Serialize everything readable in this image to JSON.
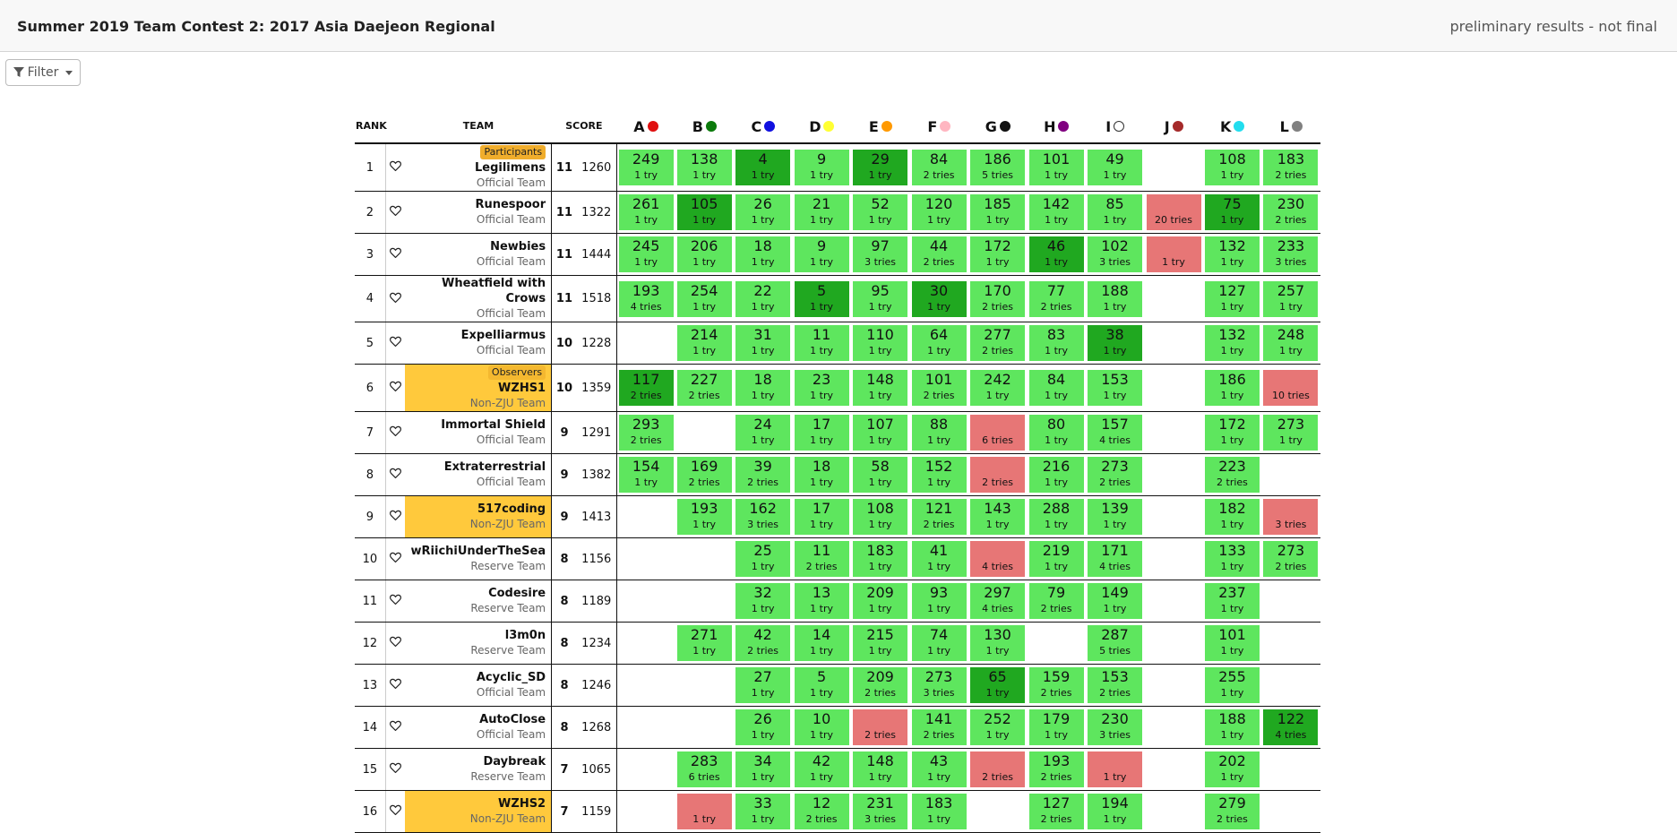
{
  "header": {
    "title": "Summer 2019 Team Contest 2: 2017 Asia Daejeon Regional",
    "status": "preliminary results - not final"
  },
  "filter": {
    "label": "Filter"
  },
  "columns": {
    "rank": "RANK",
    "team": "TEAM",
    "score": "SCORE"
  },
  "problems": [
    {
      "letter": "A",
      "color": "#e01010"
    },
    {
      "letter": "B",
      "color": "#0b7a0b"
    },
    {
      "letter": "C",
      "color": "#1010e0"
    },
    {
      "letter": "D",
      "color": "#ffff33"
    },
    {
      "letter": "E",
      "color": "#ff9900"
    },
    {
      "letter": "F",
      "color": "#ffb6c1"
    },
    {
      "letter": "G",
      "color": "#111111"
    },
    {
      "letter": "H",
      "color": "#800080"
    },
    {
      "letter": "I",
      "color": "#ffffff"
    },
    {
      "letter": "J",
      "color": "#a52a2a"
    },
    {
      "letter": "K",
      "color": "#22ddee"
    },
    {
      "letter": "L",
      "color": "#808080"
    }
  ],
  "rows": [
    {
      "rank": "1",
      "badge": "Participants",
      "name": "Legilimens",
      "type": "Official Team",
      "solved": "11",
      "penalty": "1260",
      "hl": false,
      "cells": [
        [
          "ac",
          "249",
          "1 try"
        ],
        [
          "ac",
          "138",
          "1 try"
        ],
        [
          "fb",
          "4",
          "1 try"
        ],
        [
          "ac",
          "9",
          "1 try"
        ],
        [
          "fb",
          "29",
          "1 try"
        ],
        [
          "ac",
          "84",
          "2 tries"
        ],
        [
          "ac",
          "186",
          "5 tries"
        ],
        [
          "ac",
          "101",
          "1 try"
        ],
        [
          "ac",
          "49",
          "1 try"
        ],
        [
          "empty",
          "",
          ""
        ],
        [
          "ac",
          "108",
          "1 try"
        ],
        [
          "ac",
          "183",
          "2 tries"
        ]
      ]
    },
    {
      "rank": "2",
      "badge": "",
      "name": "Runespoor",
      "type": "Official Team",
      "solved": "11",
      "penalty": "1322",
      "hl": false,
      "cells": [
        [
          "ac",
          "261",
          "1 try"
        ],
        [
          "fb",
          "105",
          "1 try"
        ],
        [
          "ac",
          "26",
          "1 try"
        ],
        [
          "ac",
          "21",
          "1 try"
        ],
        [
          "ac",
          "52",
          "1 try"
        ],
        [
          "ac",
          "120",
          "1 try"
        ],
        [
          "ac",
          "185",
          "1 try"
        ],
        [
          "ac",
          "142",
          "1 try"
        ],
        [
          "ac",
          "85",
          "1 try"
        ],
        [
          "wa",
          "",
          "20 tries"
        ],
        [
          "fb",
          "75",
          "1 try"
        ],
        [
          "ac",
          "230",
          "2 tries"
        ]
      ]
    },
    {
      "rank": "3",
      "badge": "",
      "name": "Newbies",
      "type": "Official Team",
      "solved": "11",
      "penalty": "1444",
      "hl": false,
      "cells": [
        [
          "ac",
          "245",
          "1 try"
        ],
        [
          "ac",
          "206",
          "1 try"
        ],
        [
          "ac",
          "18",
          "1 try"
        ],
        [
          "ac",
          "9",
          "1 try"
        ],
        [
          "ac",
          "97",
          "3 tries"
        ],
        [
          "ac",
          "44",
          "2 tries"
        ],
        [
          "ac",
          "172",
          "1 try"
        ],
        [
          "fb",
          "46",
          "1 try"
        ],
        [
          "ac",
          "102",
          "3 tries"
        ],
        [
          "wa",
          "",
          "1 try"
        ],
        [
          "ac",
          "132",
          "1 try"
        ],
        [
          "ac",
          "233",
          "3 tries"
        ]
      ]
    },
    {
      "rank": "4",
      "badge": "",
      "name": "Wheatfield with Crows",
      "type": "Official Team",
      "solved": "11",
      "penalty": "1518",
      "hl": false,
      "cells": [
        [
          "ac",
          "193",
          "4 tries"
        ],
        [
          "ac",
          "254",
          "1 try"
        ],
        [
          "ac",
          "22",
          "1 try"
        ],
        [
          "fb",
          "5",
          "1 try"
        ],
        [
          "ac",
          "95",
          "1 try"
        ],
        [
          "fb",
          "30",
          "1 try"
        ],
        [
          "ac",
          "170",
          "2 tries"
        ],
        [
          "ac",
          "77",
          "2 tries"
        ],
        [
          "ac",
          "188",
          "1 try"
        ],
        [
          "empty",
          "",
          ""
        ],
        [
          "ac",
          "127",
          "1 try"
        ],
        [
          "ac",
          "257",
          "1 try"
        ]
      ]
    },
    {
      "rank": "5",
      "badge": "",
      "name": "Expelliarmus",
      "type": "Official Team",
      "solved": "10",
      "penalty": "1228",
      "hl": false,
      "cells": [
        [
          "empty",
          "",
          ""
        ],
        [
          "ac",
          "214",
          "1 try"
        ],
        [
          "ac",
          "31",
          "1 try"
        ],
        [
          "ac",
          "11",
          "1 try"
        ],
        [
          "ac",
          "110",
          "1 try"
        ],
        [
          "ac",
          "64",
          "1 try"
        ],
        [
          "ac",
          "277",
          "2 tries"
        ],
        [
          "ac",
          "83",
          "1 try"
        ],
        [
          "fb",
          "38",
          "1 try"
        ],
        [
          "empty",
          "",
          ""
        ],
        [
          "ac",
          "132",
          "1 try"
        ],
        [
          "ac",
          "248",
          "1 try"
        ]
      ]
    },
    {
      "rank": "6",
      "badge": "Observers",
      "name": "WZHS1",
      "type": "Non-ZJU Team",
      "solved": "10",
      "penalty": "1359",
      "hl": true,
      "cells": [
        [
          "fb",
          "117",
          "2 tries"
        ],
        [
          "ac",
          "227",
          "2 tries"
        ],
        [
          "ac",
          "18",
          "1 try"
        ],
        [
          "ac",
          "23",
          "1 try"
        ],
        [
          "ac",
          "148",
          "1 try"
        ],
        [
          "ac",
          "101",
          "2 tries"
        ],
        [
          "ac",
          "242",
          "1 try"
        ],
        [
          "ac",
          "84",
          "1 try"
        ],
        [
          "ac",
          "153",
          "1 try"
        ],
        [
          "empty",
          "",
          ""
        ],
        [
          "ac",
          "186",
          "1 try"
        ],
        [
          "wa",
          "",
          "10 tries"
        ]
      ]
    },
    {
      "rank": "7",
      "badge": "",
      "name": "Immortal Shield",
      "type": "Official Team",
      "solved": "9",
      "penalty": "1291",
      "hl": false,
      "cells": [
        [
          "ac",
          "293",
          "2 tries"
        ],
        [
          "empty",
          "",
          ""
        ],
        [
          "ac",
          "24",
          "1 try"
        ],
        [
          "ac",
          "17",
          "1 try"
        ],
        [
          "ac",
          "107",
          "1 try"
        ],
        [
          "ac",
          "88",
          "1 try"
        ],
        [
          "wa",
          "",
          "6 tries"
        ],
        [
          "ac",
          "80",
          "1 try"
        ],
        [
          "ac",
          "157",
          "4 tries"
        ],
        [
          "empty",
          "",
          ""
        ],
        [
          "ac",
          "172",
          "1 try"
        ],
        [
          "ac",
          "273",
          "1 try"
        ]
      ]
    },
    {
      "rank": "8",
      "badge": "",
      "name": "Extraterrestrial",
      "type": "Official Team",
      "solved": "9",
      "penalty": "1382",
      "hl": false,
      "cells": [
        [
          "ac",
          "154",
          "1 try"
        ],
        [
          "ac",
          "169",
          "2 tries"
        ],
        [
          "ac",
          "39",
          "2 tries"
        ],
        [
          "ac",
          "18",
          "1 try"
        ],
        [
          "ac",
          "58",
          "1 try"
        ],
        [
          "ac",
          "152",
          "1 try"
        ],
        [
          "wa",
          "",
          "2 tries"
        ],
        [
          "ac",
          "216",
          "1 try"
        ],
        [
          "ac",
          "273",
          "2 tries"
        ],
        [
          "empty",
          "",
          ""
        ],
        [
          "ac",
          "223",
          "2 tries"
        ],
        [
          "empty",
          "",
          ""
        ]
      ]
    },
    {
      "rank": "9",
      "badge": "",
      "name": "517coding",
      "type": "Non-ZJU Team",
      "solved": "9",
      "penalty": "1413",
      "hl": true,
      "cells": [
        [
          "empty",
          "",
          ""
        ],
        [
          "ac",
          "193",
          "1 try"
        ],
        [
          "ac",
          "162",
          "3 tries"
        ],
        [
          "ac",
          "17",
          "1 try"
        ],
        [
          "ac",
          "108",
          "1 try"
        ],
        [
          "ac",
          "121",
          "2 tries"
        ],
        [
          "ac",
          "143",
          "1 try"
        ],
        [
          "ac",
          "288",
          "1 try"
        ],
        [
          "ac",
          "139",
          "1 try"
        ],
        [
          "empty",
          "",
          ""
        ],
        [
          "ac",
          "182",
          "1 try"
        ],
        [
          "wa",
          "",
          "3 tries"
        ]
      ]
    },
    {
      "rank": "10",
      "badge": "",
      "name": "wRiichiUnderTheSea",
      "type": "Reserve Team",
      "solved": "8",
      "penalty": "1156",
      "hl": false,
      "cells": [
        [
          "empty",
          "",
          ""
        ],
        [
          "empty",
          "",
          ""
        ],
        [
          "ac",
          "25",
          "1 try"
        ],
        [
          "ac",
          "11",
          "2 tries"
        ],
        [
          "ac",
          "183",
          "1 try"
        ],
        [
          "ac",
          "41",
          "1 try"
        ],
        [
          "wa",
          "",
          "4 tries"
        ],
        [
          "ac",
          "219",
          "1 try"
        ],
        [
          "ac",
          "171",
          "4 tries"
        ],
        [
          "empty",
          "",
          ""
        ],
        [
          "ac",
          "133",
          "1 try"
        ],
        [
          "ac",
          "273",
          "2 tries"
        ]
      ]
    },
    {
      "rank": "11",
      "badge": "",
      "name": "Codesire",
      "type": "Reserve Team",
      "solved": "8",
      "penalty": "1189",
      "hl": false,
      "cells": [
        [
          "empty",
          "",
          ""
        ],
        [
          "empty",
          "",
          ""
        ],
        [
          "ac",
          "32",
          "1 try"
        ],
        [
          "ac",
          "13",
          "1 try"
        ],
        [
          "ac",
          "209",
          "1 try"
        ],
        [
          "ac",
          "93",
          "1 try"
        ],
        [
          "ac",
          "297",
          "4 tries"
        ],
        [
          "ac",
          "79",
          "2 tries"
        ],
        [
          "ac",
          "149",
          "1 try"
        ],
        [
          "empty",
          "",
          ""
        ],
        [
          "ac",
          "237",
          "1 try"
        ],
        [
          "empty",
          "",
          ""
        ]
      ]
    },
    {
      "rank": "12",
      "badge": "",
      "name": "l3m0n",
      "type": "Reserve Team",
      "solved": "8",
      "penalty": "1234",
      "hl": false,
      "cells": [
        [
          "empty",
          "",
          ""
        ],
        [
          "ac",
          "271",
          "1 try"
        ],
        [
          "ac",
          "42",
          "2 tries"
        ],
        [
          "ac",
          "14",
          "1 try"
        ],
        [
          "ac",
          "215",
          "1 try"
        ],
        [
          "ac",
          "74",
          "1 try"
        ],
        [
          "ac",
          "130",
          "1 try"
        ],
        [
          "empty",
          "",
          ""
        ],
        [
          "ac",
          "287",
          "5 tries"
        ],
        [
          "empty",
          "",
          ""
        ],
        [
          "ac",
          "101",
          "1 try"
        ],
        [
          "empty",
          "",
          ""
        ]
      ]
    },
    {
      "rank": "13",
      "badge": "",
      "name": "Acyclic_SD",
      "type": "Official Team",
      "solved": "8",
      "penalty": "1246",
      "hl": false,
      "cells": [
        [
          "empty",
          "",
          ""
        ],
        [
          "empty",
          "",
          ""
        ],
        [
          "ac",
          "27",
          "1 try"
        ],
        [
          "ac",
          "5",
          "1 try"
        ],
        [
          "ac",
          "209",
          "2 tries"
        ],
        [
          "ac",
          "273",
          "3 tries"
        ],
        [
          "fb",
          "65",
          "1 try"
        ],
        [
          "ac",
          "159",
          "2 tries"
        ],
        [
          "ac",
          "153",
          "2 tries"
        ],
        [
          "empty",
          "",
          ""
        ],
        [
          "ac",
          "255",
          "1 try"
        ],
        [
          "empty",
          "",
          ""
        ]
      ]
    },
    {
      "rank": "14",
      "badge": "",
      "name": "AutoClose",
      "type": "Official Team",
      "solved": "8",
      "penalty": "1268",
      "hl": false,
      "cells": [
        [
          "empty",
          "",
          ""
        ],
        [
          "empty",
          "",
          ""
        ],
        [
          "ac",
          "26",
          "1 try"
        ],
        [
          "ac",
          "10",
          "1 try"
        ],
        [
          "wa",
          "",
          "2 tries"
        ],
        [
          "ac",
          "141",
          "2 tries"
        ],
        [
          "ac",
          "252",
          "1 try"
        ],
        [
          "ac",
          "179",
          "1 try"
        ],
        [
          "ac",
          "230",
          "3 tries"
        ],
        [
          "empty",
          "",
          ""
        ],
        [
          "ac",
          "188",
          "1 try"
        ],
        [
          "fb",
          "122",
          "4 tries"
        ]
      ]
    },
    {
      "rank": "15",
      "badge": "",
      "name": "Daybreak",
      "type": "Reserve Team",
      "solved": "7",
      "penalty": "1065",
      "hl": false,
      "cells": [
        [
          "empty",
          "",
          ""
        ],
        [
          "ac",
          "283",
          "6 tries"
        ],
        [
          "ac",
          "34",
          "1 try"
        ],
        [
          "ac",
          "42",
          "1 try"
        ],
        [
          "ac",
          "148",
          "1 try"
        ],
        [
          "ac",
          "43",
          "1 try"
        ],
        [
          "wa",
          "",
          "2 tries"
        ],
        [
          "ac",
          "193",
          "2 tries"
        ],
        [
          "wa",
          "",
          "1 try"
        ],
        [
          "empty",
          "",
          ""
        ],
        [
          "ac",
          "202",
          "1 try"
        ],
        [
          "empty",
          "",
          ""
        ]
      ]
    },
    {
      "rank": "16",
      "badge": "",
      "name": "WZHS2",
      "type": "Non-ZJU Team",
      "solved": "7",
      "penalty": "1159",
      "hl": true,
      "cells": [
        [
          "empty",
          "",
          ""
        ],
        [
          "wa",
          "",
          "1 try"
        ],
        [
          "ac",
          "33",
          "1 try"
        ],
        [
          "ac",
          "12",
          "2 tries"
        ],
        [
          "ac",
          "231",
          "3 tries"
        ],
        [
          "ac",
          "183",
          "1 try"
        ],
        [
          "empty",
          "",
          ""
        ],
        [
          "ac",
          "127",
          "2 tries"
        ],
        [
          "ac",
          "194",
          "1 try"
        ],
        [
          "empty",
          "",
          ""
        ],
        [
          "ac",
          "279",
          "2 tries"
        ],
        [
          "empty",
          "",
          ""
        ]
      ]
    }
  ]
}
